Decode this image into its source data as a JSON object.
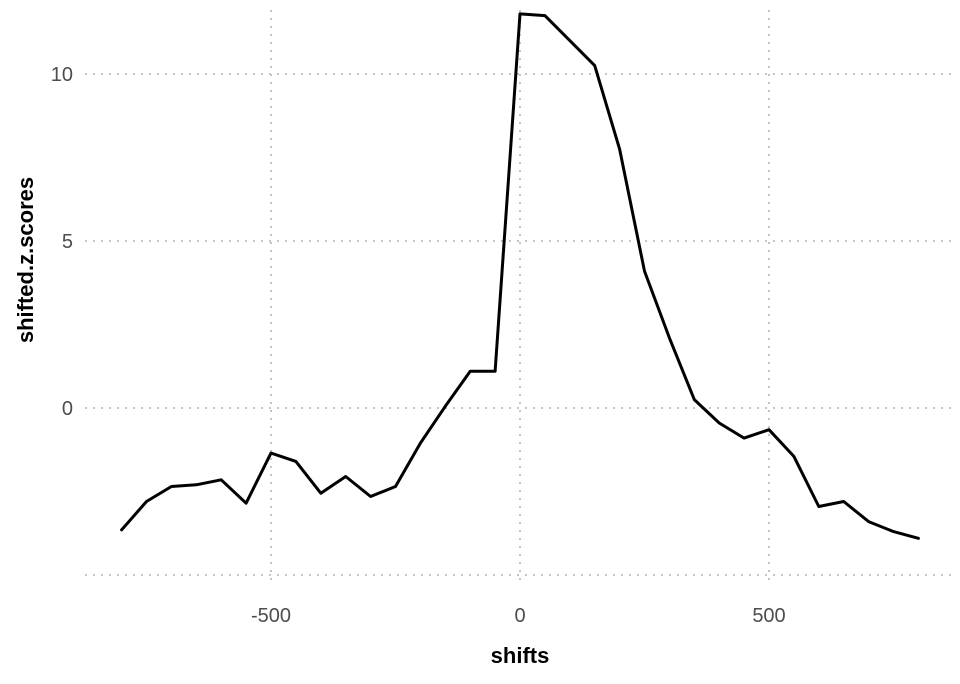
{
  "chart_data": {
    "type": "line",
    "title": "",
    "xlabel": "shifts",
    "ylabel": "shifted.z.scores",
    "xlim": [
      -800,
      800
    ],
    "ylim": [
      -5,
      12.2
    ],
    "x_ticks": [
      -500,
      0,
      500
    ],
    "x_tick_labels": [
      "-500",
      "0",
      "500"
    ],
    "y_ticks": [
      0,
      5,
      10
    ],
    "y_tick_labels": [
      "0",
      "5",
      "10"
    ],
    "y_minor_grid": [
      -5
    ],
    "grid": true,
    "legend": "none",
    "series": [
      {
        "color": "#000000",
        "x": [
          -800,
          -750,
          -700,
          -650,
          -600,
          -550,
          -500,
          -450,
          -400,
          -350,
          -300,
          -250,
          -200,
          -150,
          -100,
          -50,
          0,
          50,
          100,
          150,
          200,
          250,
          300,
          350,
          400,
          450,
          500,
          550,
          600,
          650,
          700,
          750,
          800
        ],
        "y": [
          -3.65,
          -2.8,
          -2.35,
          -2.3,
          -2.15,
          -2.85,
          -1.35,
          -1.6,
          -2.55,
          -2.05,
          -2.65,
          -2.35,
          -1.05,
          0.05,
          1.1,
          1.1,
          11.8,
          11.75,
          11.0,
          10.25,
          7.75,
          4.1,
          2.1,
          0.25,
          -0.45,
          -0.9,
          -0.65,
          -1.45,
          -2.95,
          -2.8,
          -3.4,
          -3.7,
          -3.9
        ]
      }
    ]
  }
}
